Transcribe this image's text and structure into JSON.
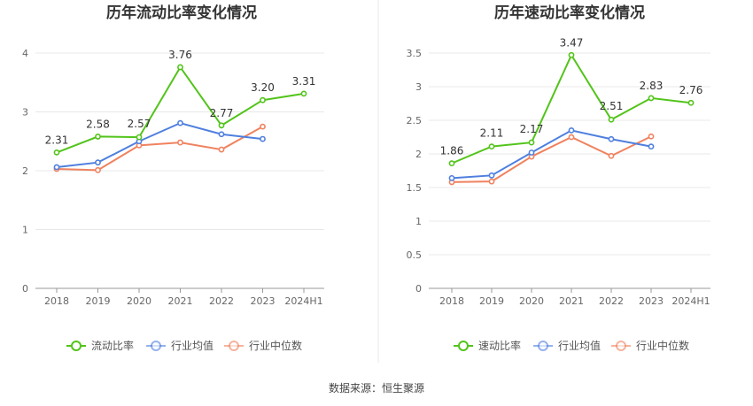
{
  "source_text": "数据来源：恒生聚源",
  "colors": {
    "green": "#52c41a",
    "blue": "#4e7fde",
    "orange": "#f0825f",
    "grid": "#e8e8e8",
    "axis": "#999999"
  },
  "chart_data": [
    {
      "type": "line",
      "title": "历年流动比率变化情况",
      "categories": [
        "2018",
        "2019",
        "2020",
        "2021",
        "2022",
        "2023",
        "2024H1"
      ],
      "ylim": [
        0,
        4
      ],
      "yticks": [
        0,
        1,
        2,
        3,
        4
      ],
      "ytick_labels": [
        "0",
        "1",
        "2",
        "3",
        "4"
      ],
      "grid": true,
      "legend_position": "bottom",
      "series": [
        {
          "name": "流动比率",
          "color": "#52c41a",
          "values": [
            2.31,
            2.58,
            2.57,
            3.76,
            2.77,
            3.2,
            3.31
          ],
          "labels": [
            "2.31",
            "2.58",
            "2.57",
            "3.76",
            "2.77",
            "3.20",
            "3.31"
          ]
        },
        {
          "name": "行业均值",
          "color": "#4e7fde",
          "values": [
            2.06,
            2.14,
            2.5,
            2.81,
            2.62,
            2.54,
            null
          ]
        },
        {
          "name": "行业中位数",
          "color": "#f0825f",
          "values": [
            2.03,
            2.01,
            2.43,
            2.48,
            2.36,
            2.75,
            null
          ]
        }
      ]
    },
    {
      "type": "line",
      "title": "历年速动比率变化情况",
      "categories": [
        "2018",
        "2019",
        "2020",
        "2021",
        "2022",
        "2023",
        "2024H1"
      ],
      "ylim": [
        0,
        3.5
      ],
      "yticks": [
        0,
        0.5,
        1,
        1.5,
        2,
        2.5,
        3,
        3.5
      ],
      "ytick_labels": [
        "0",
        "0.5",
        "1",
        "1.5",
        "2",
        "2.5",
        "3",
        "3.5"
      ],
      "grid": true,
      "legend_position": "bottom",
      "series": [
        {
          "name": "速动比率",
          "color": "#52c41a",
          "values": [
            1.86,
            2.11,
            2.17,
            3.47,
            2.51,
            2.83,
            2.76
          ],
          "labels": [
            "1.86",
            "2.11",
            "2.17",
            "3.47",
            "2.51",
            "2.83",
            "2.76"
          ]
        },
        {
          "name": "行业均值",
          "color": "#4e7fde",
          "values": [
            1.64,
            1.68,
            2.02,
            2.35,
            2.22,
            2.11,
            null
          ]
        },
        {
          "name": "行业中位数",
          "color": "#f0825f",
          "values": [
            1.58,
            1.59,
            1.96,
            2.25,
            1.97,
            2.26,
            null
          ]
        }
      ]
    }
  ]
}
